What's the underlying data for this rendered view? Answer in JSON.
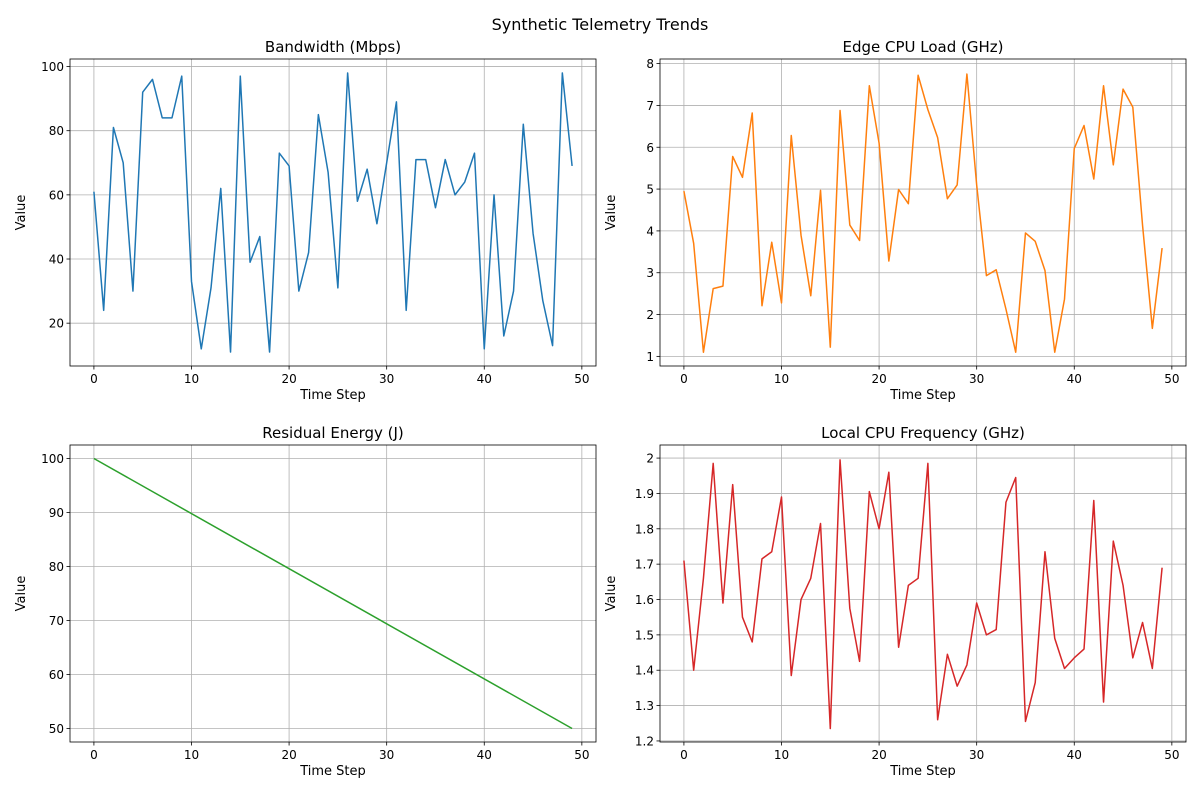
{
  "figure": {
    "suptitle": "Synthetic Telemetry Trends"
  },
  "chart_data": [
    {
      "type": "line",
      "title": "Bandwidth (Mbps)",
      "xlabel": "Time Step",
      "ylabel": "Value",
      "color": "#1f77b4",
      "grid": true,
      "xlim": [
        -2.45,
        51.45
      ],
      "ylim": [
        6.65,
        102.35
      ],
      "xticks": [
        0,
        10,
        20,
        30,
        40,
        50
      ],
      "yticks": [
        20,
        40,
        60,
        80,
        100
      ],
      "x": [
        0,
        1,
        2,
        3,
        4,
        5,
        6,
        7,
        8,
        9,
        10,
        11,
        12,
        13,
        14,
        15,
        16,
        17,
        18,
        19,
        20,
        21,
        22,
        23,
        24,
        25,
        26,
        27,
        28,
        29,
        30,
        31,
        32,
        33,
        34,
        35,
        36,
        37,
        38,
        39,
        40,
        41,
        42,
        43,
        44,
        45,
        46,
        47,
        48,
        49
      ],
      "y": [
        61,
        24,
        81,
        70,
        30,
        92,
        96,
        84,
        84,
        97,
        33,
        12,
        31,
        62,
        11,
        97,
        39,
        47,
        11,
        73,
        69,
        30,
        42,
        85,
        67,
        31,
        98,
        58,
        68,
        51,
        70,
        89,
        24,
        71,
        71,
        56,
        71,
        60,
        64,
        73,
        12,
        60,
        16,
        30,
        82,
        48,
        27,
        13,
        98,
        69
      ]
    },
    {
      "type": "line",
      "title": "Edge CPU Load (GHz)",
      "xlabel": "Time Step",
      "ylabel": "Value",
      "color": "#ff7f0e",
      "grid": true,
      "xlim": [
        -2.45,
        51.45
      ],
      "ylim": [
        0.77,
        8.11
      ],
      "xticks": [
        0,
        10,
        20,
        30,
        40,
        50
      ],
      "yticks": [
        1,
        2,
        3,
        4,
        5,
        6,
        7,
        8
      ],
      "x": [
        0,
        1,
        2,
        3,
        4,
        5,
        6,
        7,
        8,
        9,
        10,
        11,
        12,
        13,
        14,
        15,
        16,
        17,
        18,
        19,
        20,
        21,
        22,
        23,
        24,
        25,
        26,
        27,
        28,
        29,
        30,
        31,
        32,
        33,
        34,
        35,
        36,
        37,
        38,
        39,
        40,
        41,
        42,
        43,
        44,
        45,
        46,
        47,
        48,
        49
      ],
      "y": [
        4.95,
        3.7,
        1.1,
        2.62,
        2.68,
        5.78,
        5.28,
        6.82,
        2.21,
        3.73,
        2.28,
        6.28,
        3.9,
        2.45,
        4.97,
        1.22,
        6.88,
        4.14,
        3.77,
        7.47,
        6.1,
        3.28,
        4.99,
        4.65,
        7.72,
        6.9,
        6.23,
        4.77,
        5.1,
        7.75,
        5.1,
        2.93,
        3.07,
        2.13,
        1.1,
        3.95,
        3.75,
        3.05,
        1.1,
        2.37,
        5.97,
        6.52,
        5.24,
        7.47,
        5.58,
        7.39,
        6.96,
        4.13,
        1.67,
        3.59
      ]
    },
    {
      "type": "line",
      "title": "Residual Energy (J)",
      "xlabel": "Time Step",
      "ylabel": "Value",
      "color": "#2ca02c",
      "grid": true,
      "xlim": [
        -2.45,
        51.45
      ],
      "ylim": [
        47.5,
        102.5
      ],
      "xticks": [
        0,
        10,
        20,
        30,
        40,
        50
      ],
      "yticks": [
        50,
        60,
        70,
        80,
        90,
        100
      ],
      "x": [
        0,
        49
      ],
      "y": [
        100,
        50
      ]
    },
    {
      "type": "line",
      "title": "Local CPU Frequency (GHz)",
      "xlabel": "Time Step",
      "ylabel": "Value",
      "color": "#d62728",
      "grid": true,
      "xlim": [
        -2.45,
        51.45
      ],
      "ylim": [
        1.197,
        2.037
      ],
      "xticks": [
        0,
        10,
        20,
        30,
        40,
        50
      ],
      "yticks": [
        1.2,
        1.3,
        1.4,
        1.5,
        1.6,
        1.7,
        1.8,
        1.9,
        2.0
      ],
      "x": [
        0,
        1,
        2,
        3,
        4,
        5,
        6,
        7,
        8,
        9,
        10,
        11,
        12,
        13,
        14,
        15,
        16,
        17,
        18,
        19,
        20,
        21,
        22,
        23,
        24,
        25,
        26,
        27,
        28,
        29,
        30,
        31,
        32,
        33,
        34,
        35,
        36,
        37,
        38,
        39,
        40,
        41,
        42,
        43,
        44,
        45,
        46,
        47,
        48,
        49
      ],
      "y": [
        1.71,
        1.4,
        1.66,
        1.985,
        1.59,
        1.925,
        1.55,
        1.48,
        1.715,
        1.735,
        1.89,
        1.385,
        1.6,
        1.66,
        1.815,
        1.235,
        1.995,
        1.575,
        1.425,
        1.905,
        1.8,
        1.96,
        1.465,
        1.64,
        1.66,
        1.985,
        1.26,
        1.445,
        1.355,
        1.415,
        1.59,
        1.5,
        1.515,
        1.875,
        1.945,
        1.255,
        1.365,
        1.735,
        1.49,
        1.405,
        1.435,
        1.46,
        1.88,
        1.31,
        1.765,
        1.64,
        1.435,
        1.535,
        1.405,
        1.69
      ]
    }
  ]
}
